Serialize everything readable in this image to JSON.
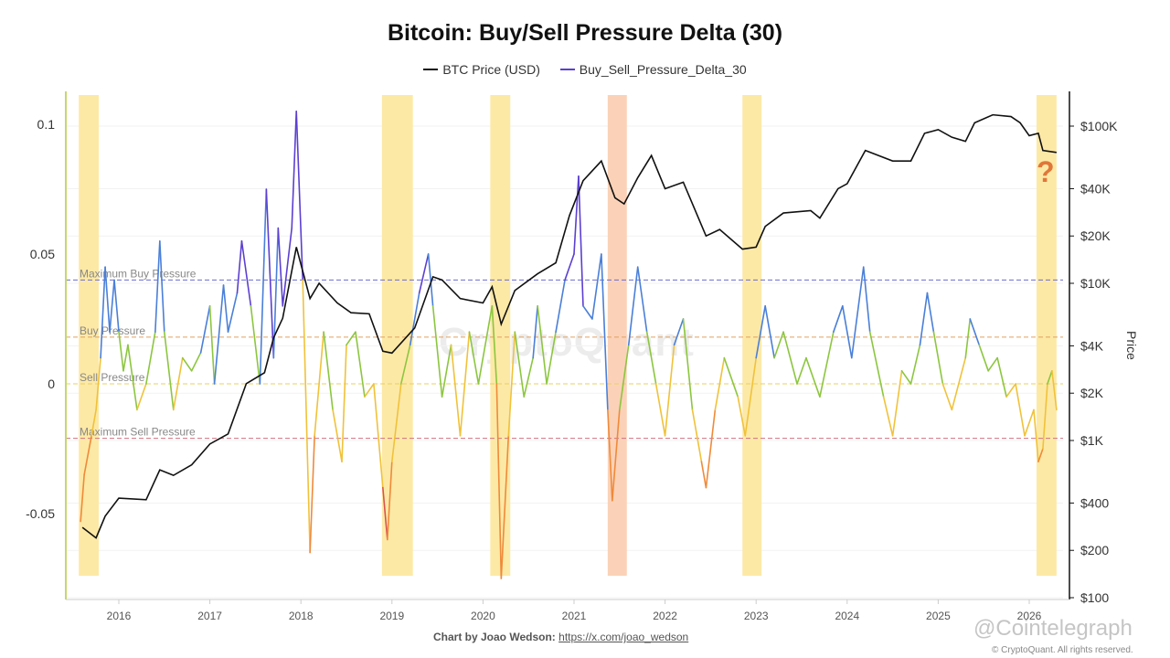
{
  "chart_data": {
    "type": "line",
    "title": "Bitcoin: Buy/Sell Pressure Delta (30)",
    "legend_position": "top",
    "series": [
      {
        "name": "BTC Price (USD)",
        "axis": "right",
        "color": "#111111",
        "x": [
          2015.6,
          2015.75,
          2015.85,
          2016.0,
          2016.3,
          2016.45,
          2016.6,
          2016.8,
          2017.0,
          2017.2,
          2017.4,
          2017.6,
          2017.7,
          2017.8,
          2017.95,
          2018.1,
          2018.2,
          2018.4,
          2018.55,
          2018.75,
          2018.9,
          2019.0,
          2019.25,
          2019.45,
          2019.55,
          2019.75,
          2020.0,
          2020.1,
          2020.2,
          2020.35,
          2020.6,
          2020.8,
          2020.95,
          2021.1,
          2021.3,
          2021.45,
          2021.55,
          2021.7,
          2021.85,
          2022.0,
          2022.2,
          2022.45,
          2022.6,
          2022.85,
          2023.0,
          2023.1,
          2023.3,
          2023.6,
          2023.7,
          2023.9,
          2024.0,
          2024.2,
          2024.5,
          2024.7,
          2024.85,
          2025.0,
          2025.15,
          2025.3,
          2025.4,
          2025.6,
          2025.8,
          2025.9,
          2026.0,
          2026.1,
          2026.15,
          2026.3
        ],
        "y": [
          280,
          240,
          330,
          430,
          420,
          650,
          600,
          700,
          950,
          1100,
          2300,
          2700,
          4500,
          6000,
          17000,
          8000,
          10000,
          7500,
          6500,
          6400,
          3700,
          3600,
          5200,
          11000,
          10500,
          8000,
          7500,
          9500,
          5500,
          9000,
          11500,
          13500,
          27000,
          45000,
          60000,
          35000,
          32000,
          47000,
          65000,
          40000,
          44000,
          20000,
          22000,
          16500,
          17000,
          23000,
          28000,
          29000,
          26000,
          40000,
          43000,
          70000,
          60000,
          60000,
          90000,
          95000,
          85000,
          80000,
          105000,
          118000,
          115000,
          105000,
          87000,
          90000,
          70000,
          68000
        ]
      },
      {
        "name": "Buy_Sell_Pressure_Delta_30",
        "axis": "left",
        "color": "#5b3fd1",
        "x": [
          2015.58,
          2015.62,
          2015.7,
          2015.75,
          2015.8,
          2015.85,
          2015.9,
          2015.95,
          2016.0,
          2016.05,
          2016.1,
          2016.2,
          2016.3,
          2016.4,
          2016.45,
          2016.5,
          2016.6,
          2016.7,
          2016.8,
          2016.9,
          2017.0,
          2017.05,
          2017.15,
          2017.2,
          2017.3,
          2017.35,
          2017.45,
          2017.55,
          2017.62,
          2017.7,
          2017.75,
          2017.8,
          2017.9,
          2017.95,
          2018.02,
          2018.1,
          2018.15,
          2018.25,
          2018.35,
          2018.45,
          2018.5,
          2018.6,
          2018.7,
          2018.8,
          2018.9,
          2018.95,
          2019.0,
          2019.1,
          2019.2,
          2019.3,
          2019.4,
          2019.45,
          2019.55,
          2019.65,
          2019.75,
          2019.85,
          2019.95,
          2020.1,
          2020.15,
          2020.2,
          2020.28,
          2020.35,
          2020.45,
          2020.55,
          2020.6,
          2020.7,
          2020.8,
          2020.9,
          2021.0,
          2021.05,
          2021.1,
          2021.2,
          2021.3,
          2021.37,
          2021.42,
          2021.5,
          2021.6,
          2021.7,
          2021.8,
          2021.9,
          2022.0,
          2022.1,
          2022.2,
          2022.3,
          2022.4,
          2022.45,
          2022.55,
          2022.65,
          2022.8,
          2022.88,
          2023.0,
          2023.1,
          2023.2,
          2023.3,
          2023.45,
          2023.55,
          2023.7,
          2023.85,
          2023.95,
          2024.05,
          2024.18,
          2024.25,
          2024.4,
          2024.5,
          2024.6,
          2024.7,
          2024.8,
          2024.88,
          2024.95,
          2025.05,
          2025.15,
          2025.3,
          2025.35,
          2025.45,
          2025.55,
          2025.65,
          2025.75,
          2025.85,
          2025.95,
          2026.05,
          2026.1,
          2026.15,
          2026.2,
          2026.25,
          2026.3
        ],
        "y": [
          -0.053,
          -0.035,
          -0.02,
          -0.01,
          0.01,
          0.045,
          0.02,
          0.04,
          0.02,
          0.005,
          0.015,
          -0.01,
          0.0,
          0.02,
          0.055,
          0.02,
          -0.01,
          0.01,
          0.005,
          0.012,
          0.03,
          0.0,
          0.038,
          0.02,
          0.035,
          0.055,
          0.03,
          0.0,
          0.075,
          0.01,
          0.06,
          0.03,
          0.06,
          0.105,
          0.04,
          -0.065,
          -0.02,
          0.02,
          -0.01,
          -0.03,
          0.015,
          0.02,
          -0.005,
          0.0,
          -0.04,
          -0.06,
          -0.03,
          0.0,
          0.015,
          0.035,
          0.05,
          0.03,
          -0.005,
          0.015,
          -0.02,
          0.02,
          0.0,
          0.03,
          0.0,
          -0.075,
          -0.02,
          0.02,
          -0.005,
          0.01,
          0.03,
          0.0,
          0.02,
          0.04,
          0.05,
          0.08,
          0.03,
          0.025,
          0.05,
          -0.01,
          -0.045,
          -0.01,
          0.015,
          0.045,
          0.02,
          0.0,
          -0.02,
          0.015,
          0.025,
          -0.01,
          -0.03,
          -0.04,
          -0.01,
          0.01,
          -0.005,
          -0.02,
          0.01,
          0.03,
          0.01,
          0.02,
          0.0,
          0.01,
          -0.005,
          0.02,
          0.03,
          0.01,
          0.045,
          0.02,
          -0.005,
          -0.02,
          0.005,
          0.0,
          0.015,
          0.035,
          0.02,
          0.0,
          -0.01,
          0.01,
          0.025,
          0.015,
          0.005,
          0.01,
          -0.005,
          0.0,
          -0.02,
          -0.01,
          -0.03,
          -0.025,
          0.0,
          0.005,
          -0.01
        ]
      }
    ],
    "left_axis": {
      "ticks": [
        0.1,
        0.05,
        0,
        -0.05
      ],
      "tick_labels": [
        "0.1",
        "0.05",
        "0",
        "-0.05"
      ],
      "range": [
        -0.075,
        0.11
      ]
    },
    "right_axis": {
      "label": "Price",
      "scale": "log",
      "ticks": [
        100000,
        40000,
        20000,
        10000,
        4000,
        2000,
        1000,
        400,
        200,
        100
      ],
      "tick_labels": [
        "$100K",
        "$40K",
        "$20K",
        "$10K",
        "$4K",
        "$2K",
        "$1K",
        "$400",
        "$200",
        "$100"
      ]
    },
    "x_axis": {
      "tick_labels": [
        "2016",
        "2017",
        "2018",
        "2019",
        "2020",
        "2021",
        "2022",
        "2023",
        "2024",
        "2025",
        "2026"
      ],
      "range": [
        2015.45,
        2026.4
      ]
    },
    "reference_lines": [
      {
        "label": "Maximum Buy Pressure",
        "value": 0.04,
        "color": "#6b6bd0"
      },
      {
        "label": "Buy Pressure",
        "value": 0.018,
        "color": "#e0a060"
      },
      {
        "label": "Sell Pressure",
        "value": 0.0,
        "color": "#e8d060"
      },
      {
        "label": "Maximum Sell Pressure",
        "value": -0.021,
        "color": "#d07080"
      }
    ],
    "highlight_bands": [
      {
        "from": 2015.56,
        "to": 2015.78,
        "color": "#fde9a6"
      },
      {
        "from": 2018.89,
        "to": 2019.23,
        "color": "#fde9a6"
      },
      {
        "from": 2020.08,
        "to": 2020.3,
        "color": "#fde9a6"
      },
      {
        "from": 2021.37,
        "to": 2021.58,
        "color": "#fbd2b8"
      },
      {
        "from": 2022.85,
        "to": 2023.06,
        "color": "#fde9a6"
      },
      {
        "from": 2026.08,
        "to": 2026.3,
        "color": "#fde9a6"
      }
    ],
    "annotation": "?",
    "grid": true
  },
  "footer": {
    "credit_label": "Chart by Joao Wedson:",
    "credit_link": "https://x.com/joao_wedson",
    "watermark": "CryptoQuant",
    "source_watermark": "@Cointelegraph",
    "copyright": "© CryptoQuant. All rights reserved."
  }
}
